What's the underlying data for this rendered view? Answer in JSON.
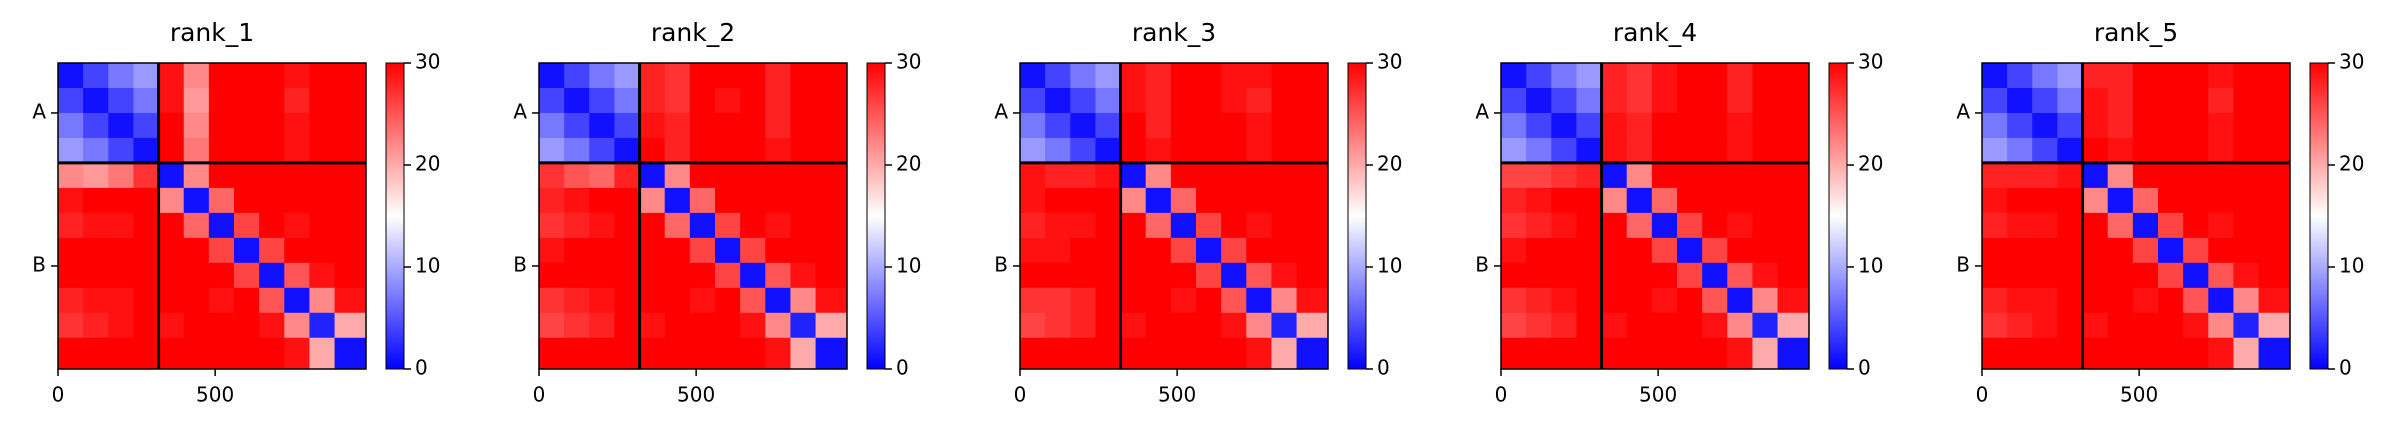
{
  "chart_data": [
    {
      "type": "heatmap",
      "title": "rank_1",
      "cmap": "bwr",
      "clim": [
        0,
        30
      ],
      "colorbar_ticks": [
        0,
        10,
        20,
        30
      ],
      "xlim": [
        0,
        980
      ],
      "ylim": [
        980,
        0
      ],
      "xticks": [
        0,
        500
      ],
      "yticks": [
        {
          "value": 160,
          "label": "A"
        },
        {
          "value": 650,
          "label": "B"
        }
      ],
      "chain_breaks": [
        320
      ],
      "bins": [
        0,
        80,
        160,
        240,
        320,
        400,
        480,
        560,
        640,
        720,
        800,
        880,
        980
      ],
      "z": [
        [
          1,
          4,
          7,
          9,
          29,
          22,
          30,
          30,
          30,
          29,
          30,
          30
        ],
        [
          4,
          1,
          4,
          7,
          29,
          21,
          30,
          30,
          30,
          28,
          30,
          30
        ],
        [
          7,
          4,
          1,
          4,
          30,
          22,
          30,
          30,
          30,
          29,
          30,
          30
        ],
        [
          9,
          7,
          4,
          1,
          30,
          23,
          30,
          30,
          30,
          29,
          30,
          30
        ],
        [
          22,
          21,
          23,
          27,
          1,
          22,
          30,
          30,
          30,
          30,
          30,
          30
        ],
        [
          29,
          30,
          30,
          30,
          22,
          1,
          24,
          30,
          30,
          30,
          30,
          30
        ],
        [
          28,
          29,
          29,
          30,
          30,
          24,
          1,
          26,
          30,
          29,
          30,
          30
        ],
        [
          30,
          30,
          30,
          30,
          30,
          30,
          26,
          1,
          26,
          30,
          30,
          30
        ],
        [
          30,
          30,
          30,
          30,
          30,
          30,
          30,
          26,
          1,
          25,
          29,
          30
        ],
        [
          28,
          29,
          29,
          30,
          30,
          30,
          29,
          30,
          25,
          1,
          22,
          29
        ],
        [
          27,
          28,
          29,
          30,
          29,
          30,
          30,
          30,
          29,
          22,
          2,
          20
        ],
        [
          30,
          30,
          30,
          30,
          30,
          30,
          30,
          30,
          30,
          29,
          20,
          1
        ]
      ]
    },
    {
      "type": "heatmap",
      "title": "rank_2",
      "cmap": "bwr",
      "clim": [
        0,
        30
      ],
      "colorbar_ticks": [
        0,
        10,
        20,
        30
      ],
      "xlim": [
        0,
        980
      ],
      "ylim": [
        980,
        0
      ],
      "xticks": [
        0,
        500
      ],
      "yticks": [
        {
          "value": 160,
          "label": "A"
        },
        {
          "value": 650,
          "label": "B"
        }
      ],
      "chain_breaks": [
        320
      ],
      "bins": [
        0,
        80,
        160,
        240,
        320,
        400,
        480,
        560,
        640,
        720,
        800,
        880,
        980
      ],
      "z": [
        [
          1,
          4,
          7,
          9,
          28,
          27,
          30,
          30,
          30,
          28,
          30,
          30
        ],
        [
          4,
          1,
          4,
          7,
          28,
          27,
          30,
          29,
          30,
          28,
          30,
          30
        ],
        [
          7,
          4,
          1,
          4,
          29,
          28,
          30,
          30,
          30,
          28,
          30,
          30
        ],
        [
          9,
          7,
          4,
          1,
          30,
          28,
          30,
          30,
          30,
          29,
          30,
          30
        ],
        [
          27,
          25,
          24,
          28,
          1,
          22,
          30,
          30,
          30,
          30,
          30,
          30
        ],
        [
          28,
          29,
          30,
          30,
          22,
          1,
          24,
          30,
          30,
          30,
          30,
          30
        ],
        [
          27,
          28,
          29,
          30,
          30,
          24,
          1,
          26,
          30,
          29,
          30,
          30
        ],
        [
          29,
          30,
          30,
          30,
          30,
          30,
          26,
          1,
          26,
          30,
          30,
          30
        ],
        [
          30,
          30,
          30,
          30,
          30,
          30,
          30,
          26,
          1,
          25,
          29,
          30
        ],
        [
          27,
          28,
          29,
          30,
          30,
          30,
          29,
          30,
          25,
          1,
          22,
          29
        ],
        [
          26,
          27,
          28,
          30,
          29,
          30,
          30,
          30,
          29,
          22,
          2,
          20
        ],
        [
          30,
          30,
          30,
          30,
          30,
          30,
          30,
          30,
          30,
          29,
          20,
          1
        ]
      ]
    },
    {
      "type": "heatmap",
      "title": "rank_3",
      "cmap": "bwr",
      "clim": [
        0,
        30
      ],
      "colorbar_ticks": [
        0,
        10,
        20,
        30
      ],
      "xlim": [
        0,
        980
      ],
      "ylim": [
        980,
        0
      ],
      "xticks": [
        0,
        500
      ],
      "yticks": [
        {
          "value": 160,
          "label": "A"
        },
        {
          "value": 650,
          "label": "B"
        }
      ],
      "chain_breaks": [
        320
      ],
      "bins": [
        0,
        80,
        160,
        240,
        320,
        400,
        480,
        560,
        640,
        720,
        800,
        880,
        980
      ],
      "z": [
        [
          1,
          4,
          7,
          9,
          29,
          28,
          30,
          30,
          29,
          29,
          30,
          30
        ],
        [
          4,
          1,
          4,
          7,
          29,
          28,
          30,
          30,
          29,
          28,
          30,
          30
        ],
        [
          7,
          4,
          1,
          4,
          30,
          28,
          30,
          30,
          30,
          29,
          30,
          30
        ],
        [
          9,
          7,
          4,
          1,
          30,
          29,
          30,
          30,
          30,
          29,
          30,
          30
        ],
        [
          29,
          28,
          28,
          29,
          1,
          22,
          30,
          30,
          30,
          30,
          30,
          30
        ],
        [
          29,
          30,
          30,
          30,
          22,
          1,
          24,
          30,
          30,
          30,
          30,
          30
        ],
        [
          28,
          29,
          29,
          30,
          30,
          24,
          1,
          26,
          30,
          29,
          30,
          30
        ],
        [
          29,
          29,
          30,
          30,
          30,
          30,
          26,
          1,
          26,
          30,
          30,
          30
        ],
        [
          30,
          30,
          30,
          30,
          30,
          30,
          30,
          26,
          1,
          25,
          29,
          30
        ],
        [
          27,
          27,
          28,
          30,
          30,
          30,
          29,
          30,
          25,
          1,
          22,
          29
        ],
        [
          26,
          27,
          28,
          30,
          29,
          30,
          30,
          30,
          29,
          22,
          2,
          20
        ],
        [
          30,
          30,
          30,
          30,
          30,
          30,
          30,
          30,
          30,
          29,
          20,
          1
        ]
      ]
    },
    {
      "type": "heatmap",
      "title": "rank_4",
      "cmap": "bwr",
      "clim": [
        0,
        30
      ],
      "colorbar_ticks": [
        0,
        10,
        20,
        30
      ],
      "xlim": [
        0,
        980
      ],
      "ylim": [
        980,
        0
      ],
      "xticks": [
        0,
        500
      ],
      "yticks": [
        {
          "value": 160,
          "label": "A"
        },
        {
          "value": 650,
          "label": "B"
        }
      ],
      "chain_breaks": [
        320
      ],
      "bins": [
        0,
        80,
        160,
        240,
        320,
        400,
        480,
        560,
        640,
        720,
        800,
        880,
        980
      ],
      "z": [
        [
          1,
          4,
          7,
          9,
          28,
          27,
          29,
          30,
          30,
          28,
          30,
          30
        ],
        [
          4,
          1,
          4,
          7,
          28,
          27,
          29,
          30,
          30,
          28,
          30,
          30
        ],
        [
          7,
          4,
          1,
          4,
          29,
          28,
          30,
          30,
          30,
          29,
          30,
          30
        ],
        [
          9,
          7,
          4,
          1,
          29,
          28,
          30,
          30,
          30,
          29,
          30,
          30
        ],
        [
          26,
          26,
          27,
          28,
          1,
          22,
          30,
          30,
          30,
          30,
          30,
          30
        ],
        [
          28,
          29,
          30,
          30,
          22,
          1,
          24,
          30,
          30,
          30,
          30,
          30
        ],
        [
          27,
          28,
          29,
          30,
          30,
          24,
          1,
          26,
          30,
          29,
          30,
          30
        ],
        [
          29,
          30,
          30,
          30,
          30,
          30,
          26,
          1,
          26,
          30,
          30,
          30
        ],
        [
          30,
          30,
          30,
          30,
          30,
          30,
          30,
          26,
          1,
          25,
          29,
          30
        ],
        [
          27,
          28,
          29,
          30,
          30,
          30,
          29,
          30,
          25,
          1,
          22,
          29
        ],
        [
          26,
          27,
          28,
          30,
          29,
          30,
          30,
          30,
          29,
          22,
          2,
          20
        ],
        [
          30,
          30,
          30,
          30,
          30,
          30,
          30,
          30,
          30,
          29,
          20,
          1
        ]
      ]
    },
    {
      "type": "heatmap",
      "title": "rank_5",
      "cmap": "bwr",
      "clim": [
        0,
        30
      ],
      "colorbar_ticks": [
        0,
        10,
        20,
        30
      ],
      "xlim": [
        0,
        980
      ],
      "ylim": [
        980,
        0
      ],
      "xticks": [
        0,
        500
      ],
      "yticks": [
        {
          "value": 160,
          "label": "A"
        },
        {
          "value": 650,
          "label": "B"
        }
      ],
      "chain_breaks": [
        320
      ],
      "bins": [
        0,
        80,
        160,
        240,
        320,
        400,
        480,
        560,
        640,
        720,
        800,
        880,
        980
      ],
      "z": [
        [
          1,
          4,
          7,
          9,
          28,
          28,
          30,
          30,
          30,
          29,
          30,
          30
        ],
        [
          4,
          1,
          4,
          7,
          29,
          28,
          30,
          30,
          30,
          28,
          30,
          30
        ],
        [
          7,
          4,
          1,
          4,
          29,
          28,
          30,
          30,
          30,
          29,
          30,
          30
        ],
        [
          9,
          7,
          4,
          1,
          30,
          29,
          30,
          30,
          30,
          29,
          30,
          30
        ],
        [
          28,
          28,
          28,
          29,
          1,
          22,
          30,
          30,
          30,
          30,
          30,
          30
        ],
        [
          29,
          30,
          30,
          30,
          22,
          1,
          24,
          30,
          30,
          30,
          30,
          30
        ],
        [
          28,
          29,
          29,
          30,
          30,
          24,
          1,
          26,
          30,
          29,
          30,
          30
        ],
        [
          30,
          30,
          30,
          30,
          30,
          30,
          26,
          1,
          26,
          30,
          30,
          30
        ],
        [
          30,
          30,
          30,
          30,
          30,
          30,
          30,
          26,
          1,
          25,
          29,
          30
        ],
        [
          28,
          29,
          29,
          30,
          30,
          30,
          29,
          30,
          25,
          1,
          22,
          29
        ],
        [
          27,
          28,
          29,
          30,
          29,
          30,
          30,
          30,
          29,
          22,
          2,
          20
        ],
        [
          30,
          30,
          30,
          30,
          30,
          30,
          30,
          30,
          30,
          29,
          20,
          1
        ]
      ]
    }
  ]
}
